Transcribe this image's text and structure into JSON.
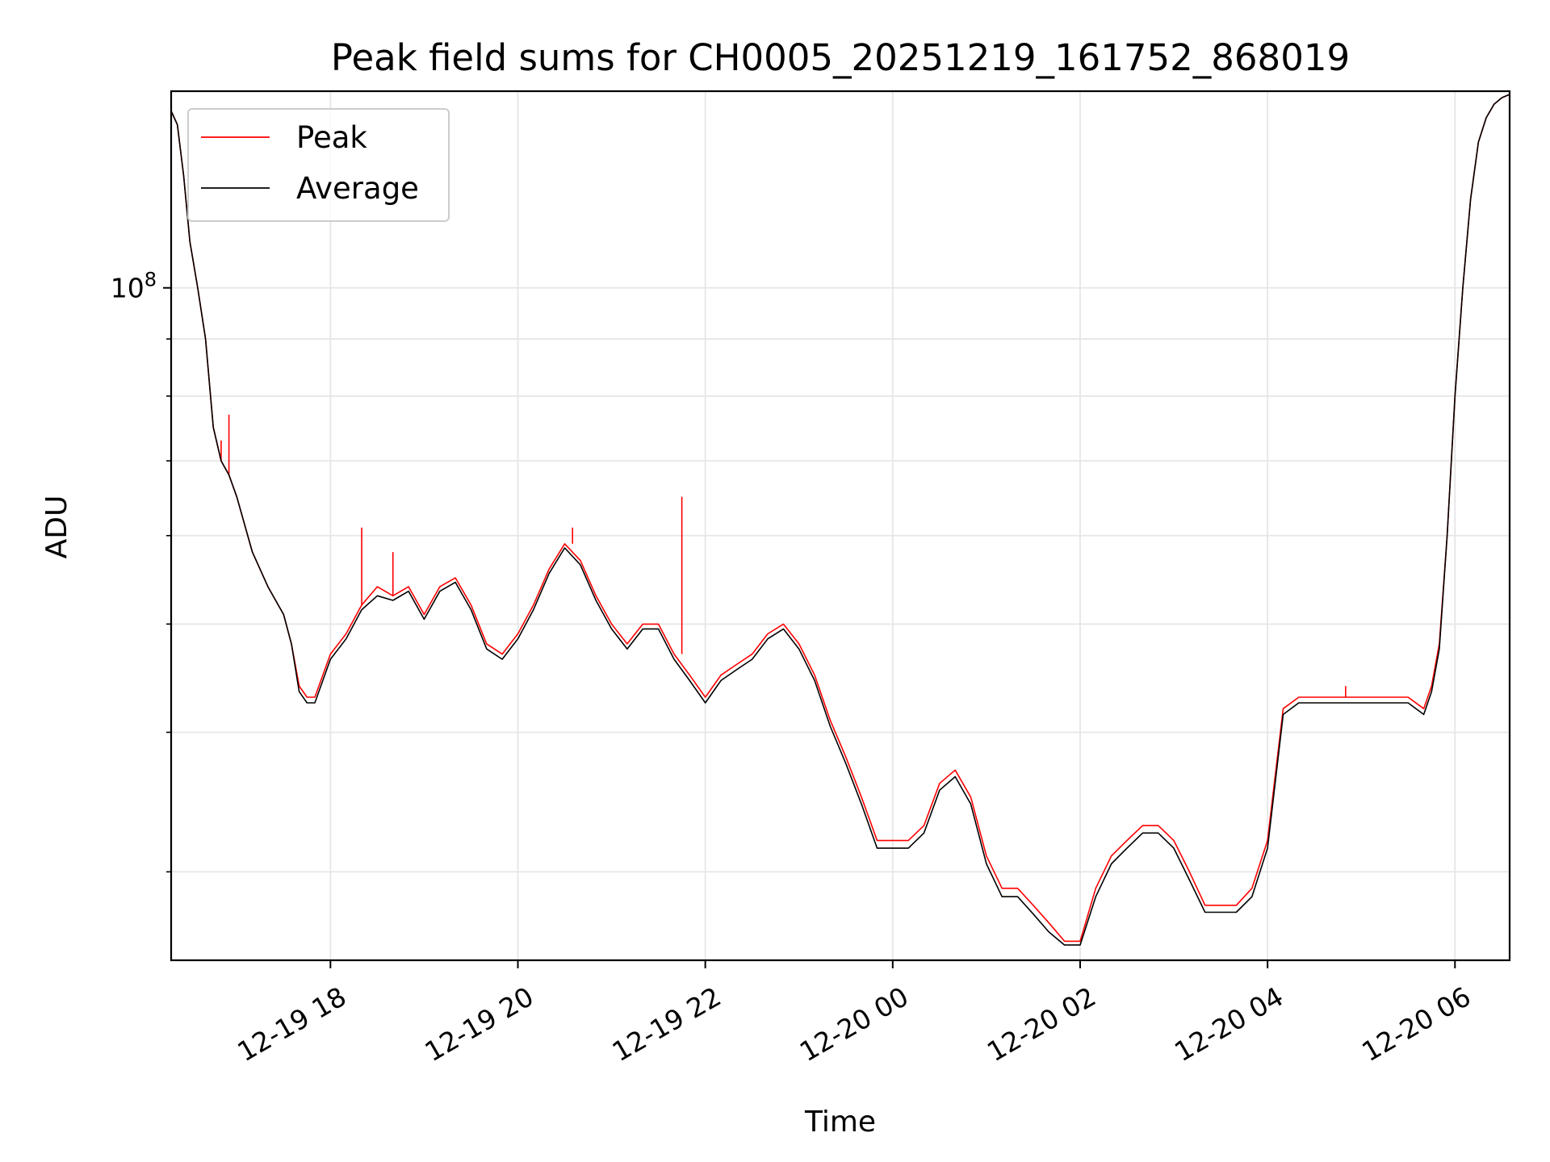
{
  "chart_data": {
    "type": "line",
    "title": "Peak field sums for CH0005_20251219_161752_868019",
    "xlabel": "Time",
    "ylabel": "ADU",
    "y_scale": "log",
    "ylim": [
      25000000,
      150000000
    ],
    "xlim": [
      "2025-12-19 16:18",
      "2025-12-20 06:35"
    ],
    "x_tick_labels": [
      "12-19 18",
      "12-19 20",
      "12-19 22",
      "12-20 00",
      "12-20 02",
      "12-20 04",
      "12-20 06"
    ],
    "x_ticks": [
      "2025-12-19 18:00",
      "2025-12-19 20:00",
      "2025-12-19 22:00",
      "2025-12-20 00:00",
      "2025-12-20 02:00",
      "2025-12-20 04:00",
      "2025-12-20 06:00"
    ],
    "y_tick_labels": [
      {
        "base": "10",
        "exp": "8"
      }
    ],
    "y_ticks": [
      100000000
    ],
    "y_minor_ticks": [
      30000000,
      40000000,
      50000000,
      60000000,
      70000000,
      80000000,
      90000000
    ],
    "grid": true,
    "legend": "top-left",
    "series": [
      {
        "name": "Peak",
        "color": "#ff0000",
        "x": [
          "2025-12-19 16:18",
          "2025-12-19 16:22",
          "2025-12-19 16:26",
          "2025-12-19 16:30",
          "2025-12-19 16:35",
          "2025-12-19 16:40",
          "2025-12-19 16:45",
          "2025-12-19 16:50",
          "2025-12-19 16:55",
          "2025-12-19 17:00",
          "2025-12-19 17:10",
          "2025-12-19 17:20",
          "2025-12-19 17:30",
          "2025-12-19 17:35",
          "2025-12-19 17:40",
          "2025-12-19 17:45",
          "2025-12-19 17:50",
          "2025-12-19 18:00",
          "2025-12-19 18:10",
          "2025-12-19 18:20",
          "2025-12-19 18:30",
          "2025-12-19 18:40",
          "2025-12-19 18:50",
          "2025-12-19 19:00",
          "2025-12-19 19:10",
          "2025-12-19 19:20",
          "2025-12-19 19:30",
          "2025-12-19 19:40",
          "2025-12-19 19:50",
          "2025-12-19 20:00",
          "2025-12-19 20:10",
          "2025-12-19 20:20",
          "2025-12-19 20:30",
          "2025-12-19 20:40",
          "2025-12-19 20:50",
          "2025-12-19 21:00",
          "2025-12-19 21:10",
          "2025-12-19 21:20",
          "2025-12-19 21:30",
          "2025-12-19 21:40",
          "2025-12-19 21:50",
          "2025-12-19 22:00",
          "2025-12-19 22:10",
          "2025-12-19 22:20",
          "2025-12-19 22:30",
          "2025-12-19 22:40",
          "2025-12-19 22:50",
          "2025-12-19 23:00",
          "2025-12-19 23:10",
          "2025-12-19 23:20",
          "2025-12-19 23:30",
          "2025-12-19 23:40",
          "2025-12-19 23:50",
          "2025-12-20 00:00",
          "2025-12-20 00:10",
          "2025-12-20 00:20",
          "2025-12-20 00:30",
          "2025-12-20 00:40",
          "2025-12-20 00:50",
          "2025-12-20 01:00",
          "2025-12-20 01:10",
          "2025-12-20 01:20",
          "2025-12-20 01:30",
          "2025-12-20 01:40",
          "2025-12-20 01:50",
          "2025-12-20 02:00",
          "2025-12-20 02:10",
          "2025-12-20 02:20",
          "2025-12-20 02:30",
          "2025-12-20 02:40",
          "2025-12-20 02:50",
          "2025-12-20 03:00",
          "2025-12-20 03:10",
          "2025-12-20 03:20",
          "2025-12-20 03:30",
          "2025-12-20 03:40",
          "2025-12-20 03:50",
          "2025-12-20 04:00",
          "2025-12-20 04:10",
          "2025-12-20 04:20",
          "2025-12-20 04:30",
          "2025-12-20 04:40",
          "2025-12-20 04:50",
          "2025-12-20 05:00",
          "2025-12-20 05:10",
          "2025-12-20 05:20",
          "2025-12-20 05:30",
          "2025-12-20 05:40",
          "2025-12-20 05:45",
          "2025-12-20 05:50",
          "2025-12-20 05:55",
          "2025-12-20 06:00",
          "2025-12-20 06:05",
          "2025-12-20 06:10",
          "2025-12-20 06:15",
          "2025-12-20 06:20",
          "2025-12-20 06:25",
          "2025-12-20 06:30",
          "2025-12-20 06:35"
        ],
        "y": [
          144000000,
          140000000,
          126000000,
          110000000,
          100000000,
          90000000,
          75000000,
          70000000,
          68000000,
          65000000,
          58000000,
          54000000,
          51000000,
          48000000,
          44000000,
          43000000,
          43000000,
          47000000,
          49000000,
          52000000,
          54000000,
          53000000,
          54000000,
          51000000,
          54000000,
          55000000,
          52000000,
          48000000,
          47000000,
          49000000,
          52000000,
          56000000,
          59000000,
          57000000,
          53000000,
          50000000,
          48000000,
          50000000,
          50000000,
          47000000,
          45000000,
          43000000,
          45000000,
          46000000,
          47000000,
          49000000,
          50000000,
          48000000,
          45000000,
          41000000,
          38000000,
          35000000,
          32000000,
          32000000,
          32000000,
          33000000,
          36000000,
          37000000,
          35000000,
          31000000,
          29000000,
          29000000,
          28000000,
          27000000,
          26000000,
          26000000,
          29000000,
          31000000,
          32000000,
          33000000,
          33000000,
          32000000,
          30000000,
          28000000,
          28000000,
          28000000,
          29000000,
          32000000,
          42000000,
          43000000,
          43000000,
          43000000,
          43000000,
          43000000,
          43000000,
          43000000,
          43000000,
          42000000,
          44000000,
          48000000,
          60000000,
          80000000,
          100000000,
          120000000,
          135000000,
          142000000,
          146000000,
          148000000,
          149000000
        ],
        "spikes": [
          {
            "x": "2025-12-19 16:50",
            "y": 73000000
          },
          {
            "x": "2025-12-19 16:55",
            "y": 77000000
          },
          {
            "x": "2025-12-19 18:20",
            "y": 61000000
          },
          {
            "x": "2025-12-19 18:40",
            "y": 58000000
          },
          {
            "x": "2025-12-19 20:35",
            "y": 61000000
          },
          {
            "x": "2025-12-19 21:45",
            "y": 65000000
          },
          {
            "x": "2025-12-20 04:50",
            "y": 44000000
          }
        ]
      },
      {
        "name": "Average",
        "color": "#000000",
        "x": [
          "2025-12-19 16:18",
          "2025-12-19 16:22",
          "2025-12-19 16:26",
          "2025-12-19 16:30",
          "2025-12-19 16:35",
          "2025-12-19 16:40",
          "2025-12-19 16:45",
          "2025-12-19 16:50",
          "2025-12-19 16:55",
          "2025-12-19 17:00",
          "2025-12-19 17:10",
          "2025-12-19 17:20",
          "2025-12-19 17:30",
          "2025-12-19 17:35",
          "2025-12-19 17:40",
          "2025-12-19 17:45",
          "2025-12-19 17:50",
          "2025-12-19 18:00",
          "2025-12-19 18:10",
          "2025-12-19 18:20",
          "2025-12-19 18:30",
          "2025-12-19 18:40",
          "2025-12-19 18:50",
          "2025-12-19 19:00",
          "2025-12-19 19:10",
          "2025-12-19 19:20",
          "2025-12-19 19:30",
          "2025-12-19 19:40",
          "2025-12-19 19:50",
          "2025-12-19 20:00",
          "2025-12-19 20:10",
          "2025-12-19 20:20",
          "2025-12-19 20:30",
          "2025-12-19 20:40",
          "2025-12-19 20:50",
          "2025-12-19 21:00",
          "2025-12-19 21:10",
          "2025-12-19 21:20",
          "2025-12-19 21:30",
          "2025-12-19 21:40",
          "2025-12-19 21:50",
          "2025-12-19 22:00",
          "2025-12-19 22:10",
          "2025-12-19 22:20",
          "2025-12-19 22:30",
          "2025-12-19 22:40",
          "2025-12-19 22:50",
          "2025-12-19 23:00",
          "2025-12-19 23:10",
          "2025-12-19 23:20",
          "2025-12-19 23:30",
          "2025-12-19 23:40",
          "2025-12-19 23:50",
          "2025-12-20 00:00",
          "2025-12-20 00:10",
          "2025-12-20 00:20",
          "2025-12-20 00:30",
          "2025-12-20 00:40",
          "2025-12-20 00:50",
          "2025-12-20 01:00",
          "2025-12-20 01:10",
          "2025-12-20 01:20",
          "2025-12-20 01:30",
          "2025-12-20 01:40",
          "2025-12-20 01:50",
          "2025-12-20 02:00",
          "2025-12-20 02:10",
          "2025-12-20 02:20",
          "2025-12-20 02:30",
          "2025-12-20 02:40",
          "2025-12-20 02:50",
          "2025-12-20 03:00",
          "2025-12-20 03:10",
          "2025-12-20 03:20",
          "2025-12-20 03:30",
          "2025-12-20 03:40",
          "2025-12-20 03:50",
          "2025-12-20 04:00",
          "2025-12-20 04:10",
          "2025-12-20 04:20",
          "2025-12-20 04:30",
          "2025-12-20 04:40",
          "2025-12-20 04:50",
          "2025-12-20 05:00",
          "2025-12-20 05:10",
          "2025-12-20 05:20",
          "2025-12-20 05:30",
          "2025-12-20 05:40",
          "2025-12-20 05:45",
          "2025-12-20 05:50",
          "2025-12-20 05:55",
          "2025-12-20 06:00",
          "2025-12-20 06:05",
          "2025-12-20 06:10",
          "2025-12-20 06:15",
          "2025-12-20 06:20",
          "2025-12-20 06:25",
          "2025-12-20 06:30",
          "2025-12-20 06:35"
        ],
        "y": [
          144000000,
          140000000,
          126000000,
          110000000,
          100000000,
          90000000,
          75000000,
          70000000,
          68000000,
          65000000,
          58000000,
          54000000,
          51000000,
          48000000,
          43500000,
          42500000,
          42500000,
          46500000,
          48500000,
          51500000,
          53000000,
          52500000,
          53500000,
          50500000,
          53500000,
          54500000,
          51500000,
          47500000,
          46500000,
          48500000,
          51500000,
          55500000,
          58500000,
          56500000,
          52500000,
          49500000,
          47500000,
          49500000,
          49500000,
          46500000,
          44500000,
          42500000,
          44500000,
          45500000,
          46500000,
          48500000,
          49500000,
          47500000,
          44500000,
          40500000,
          37500000,
          34500000,
          31500000,
          31500000,
          31500000,
          32500000,
          35500000,
          36500000,
          34500000,
          30500000,
          28500000,
          28500000,
          27500000,
          26500000,
          25800000,
          25800000,
          28500000,
          30500000,
          31500000,
          32500000,
          32500000,
          31500000,
          29500000,
          27600000,
          27600000,
          27600000,
          28500000,
          31500000,
          41500000,
          42500000,
          42500000,
          42500000,
          42500000,
          42500000,
          42500000,
          42500000,
          42500000,
          41500000,
          43500000,
          47500000,
          60000000,
          80000000,
          100000000,
          120000000,
          135000000,
          142000000,
          146000000,
          148000000,
          149000000
        ]
      }
    ]
  }
}
